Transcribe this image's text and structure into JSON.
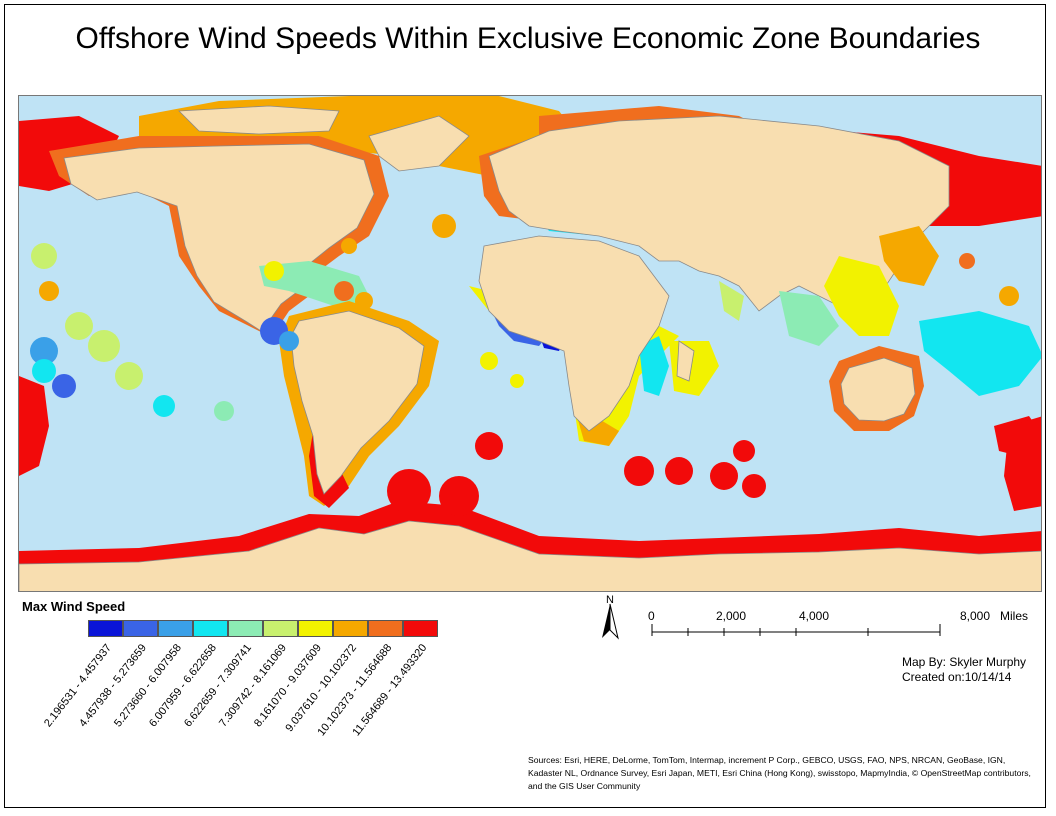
{
  "title": "Offshore Wind Speeds Within Exclusive Economic Zone Boundaries",
  "legend": {
    "title": "Max Wind Speed",
    "classes": [
      {
        "label": "2.196531 - 4.457937",
        "color": "#0a14d8"
      },
      {
        "label": "4.457938 - 5.273659",
        "color": "#3a64e6"
      },
      {
        "label": "5.273660 - 6.007958",
        "color": "#3aa0e8"
      },
      {
        "label": "6.007959 - 6.622658",
        "color": "#12e6f0"
      },
      {
        "label": "6.622659 - 7.309741",
        "color": "#8cebb4"
      },
      {
        "label": "7.309742 - 8.161069",
        "color": "#c8f06e"
      },
      {
        "label": "8.161070 - 9.037609",
        "color": "#f2f200"
      },
      {
        "label": "9.037610 - 10.102372",
        "color": "#f5a800"
      },
      {
        "label": "10.102373 - 11.564688",
        "color": "#f06e1e"
      },
      {
        "label": "11.564689 - 13.493320",
        "color": "#f20a0a"
      }
    ]
  },
  "north_arrow": {
    "label": "N"
  },
  "scale_bar": {
    "ticks": [
      "0",
      "2,000",
      "4,000",
      "8,000"
    ],
    "unit": "Miles"
  },
  "credits": {
    "author": "Map By: Skyler Murphy",
    "created": "Created on:10/14/14"
  },
  "sources": "Sources: Esri, HERE, DeLorme, TomTom, Intermap, increment P Corp., GEBCO, USGS, FAO, NPS, NRCAN, GeoBase, IGN, Kadaster NL, Ordnance Survey, Esri Japan, METI, Esri China (Hong Kong), swisstopo, MapmyIndia, © OpenStreetMap contributors, and the GIS User Community",
  "map_colors": {
    "ocean": "#bfe3f5",
    "land": "#f8deb0",
    "border": "#8a8a8a"
  }
}
